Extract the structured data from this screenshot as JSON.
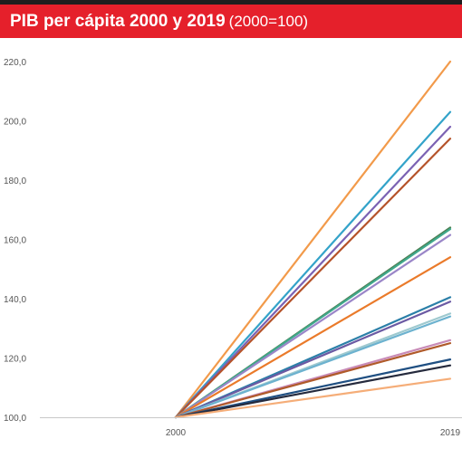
{
  "header": {
    "title": "PIB per cápita 2000 y 2019",
    "subtitle": "(2000=100)"
  },
  "colors": {
    "header_bg": "#e5202b",
    "header_text": "#ffffff",
    "top_bar": "#1e1e1e",
    "axis": "#c8c8c8",
    "tick_text": "#555555"
  },
  "chart_data": {
    "type": "line",
    "title": "PIB per cápita 2000 y 2019",
    "subtitle": "(2000=100)",
    "xlabel": "",
    "ylabel": "",
    "x": [
      "2000",
      "2019"
    ],
    "x_tick_labels": [
      "2000",
      "2019"
    ],
    "ylim": [
      100,
      220
    ],
    "y_ticks": [
      100,
      120,
      140,
      160,
      180,
      200,
      220
    ],
    "y_tick_labels": [
      "100,0",
      "120,0",
      "140,0",
      "160,0",
      "180,0",
      "200,0",
      "220,0"
    ],
    "grid": false,
    "legend": "none",
    "series": [
      {
        "values": [
          100,
          220.0
        ],
        "color": "#f29a4a"
      },
      {
        "values": [
          100,
          203.0
        ],
        "color": "#33a3c9"
      },
      {
        "values": [
          100,
          198.0
        ],
        "color": "#7b62b3"
      },
      {
        "values": [
          100,
          194.0
        ],
        "color": "#b5532a"
      },
      {
        "values": [
          100,
          164.0
        ],
        "color": "#4b7f52"
      },
      {
        "values": [
          100,
          163.5
        ],
        "color": "#3fa88c"
      },
      {
        "values": [
          100,
          161.5
        ],
        "color": "#9a86c8"
      },
      {
        "values": [
          100,
          154.0
        ],
        "color": "#ea7a2a"
      },
      {
        "values": [
          100,
          140.5
        ],
        "color": "#2b7fa8"
      },
      {
        "values": [
          100,
          139.0
        ],
        "color": "#6b5aa3"
      },
      {
        "values": [
          100,
          135.0
        ],
        "color": "#9ec9cf"
      },
      {
        "values": [
          100,
          134.0
        ],
        "color": "#6cb2cf"
      },
      {
        "values": [
          100,
          126.0
        ],
        "color": "#c88bb7"
      },
      {
        "values": [
          100,
          125.0
        ],
        "color": "#b05a2a"
      },
      {
        "values": [
          100,
          119.5
        ],
        "color": "#1f4f82"
      },
      {
        "values": [
          100,
          117.5
        ],
        "color": "#252a3d"
      },
      {
        "values": [
          100,
          113.0
        ],
        "color": "#f5ad78"
      }
    ]
  }
}
